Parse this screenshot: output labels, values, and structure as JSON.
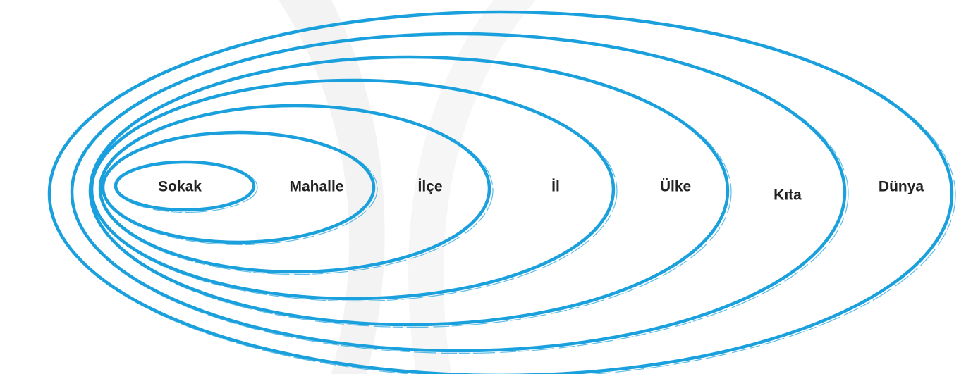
{
  "diagram": {
    "type": "nested-ellipses",
    "stroke_color": "#1aa0dc",
    "rings": [
      {
        "label": "Sokak"
      },
      {
        "label": "Mahalle"
      },
      {
        "label": "İlçe"
      },
      {
        "label": "İl"
      },
      {
        "label": "Ülke"
      },
      {
        "label": "Kıta"
      },
      {
        "label": "Dünya"
      }
    ]
  }
}
